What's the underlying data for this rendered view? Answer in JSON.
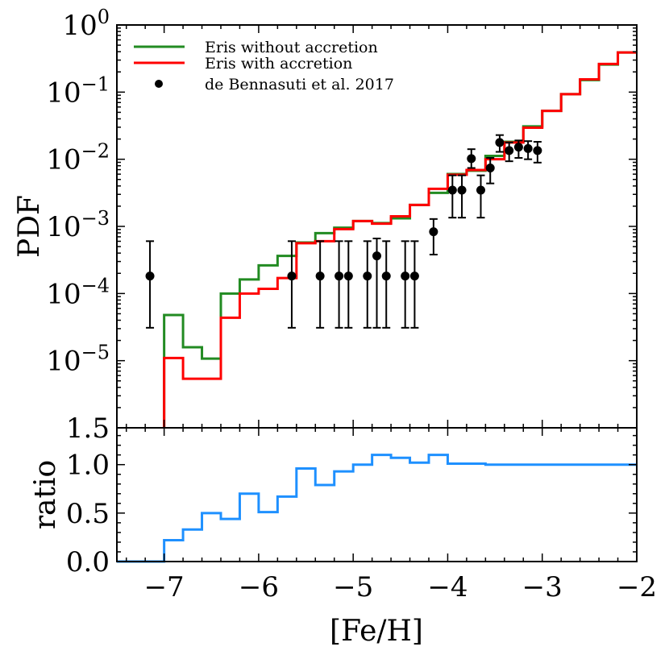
{
  "chart_data": [
    {
      "type": "line",
      "panel": "top",
      "title": "",
      "xlabel": "[Fe/H]",
      "ylabel": "PDF",
      "xlim": [
        -7.5,
        -2.0
      ],
      "ylog": true,
      "ylim_log10": [
        -6.0,
        0.0
      ],
      "ytick_labels": [
        {
          "exp": "0",
          "value": 0
        },
        {
          "exp": "−1",
          "value": -1
        },
        {
          "exp": "−2",
          "value": -2
        },
        {
          "exp": "−3",
          "value": -3
        },
        {
          "exp": "−4",
          "value": -4
        },
        {
          "exp": "−5",
          "value": -5
        }
      ],
      "ytick_base": "10",
      "bottom_tick_label": "1.5",
      "legend": {
        "position": "top-left",
        "entries": [
          {
            "label": "Eris without accretion",
            "color": "#228B22",
            "kind": "line"
          },
          {
            "label": "Eris with accretion",
            "color": "#ff0000",
            "kind": "line"
          },
          {
            "label": "de Bennasuti et al. 2017",
            "color": "#000000",
            "kind": "marker"
          }
        ]
      },
      "series": [
        {
          "name": "Eris without accretion",
          "color": "#228B22",
          "kind": "step",
          "edges": [
            -7.0,
            -6.8,
            -6.6,
            -6.4,
            -6.2,
            -6.0,
            -5.8,
            -5.6,
            -5.4,
            -5.2,
            -5.0,
            -4.8,
            -4.6,
            -4.4,
            -4.2,
            -4.0,
            -3.8,
            -3.6,
            -3.4,
            -3.2,
            -3.0,
            -2.8,
            -2.6,
            -2.4,
            -2.2,
            -2.0
          ],
          "log10_values": [
            -4.32,
            -4.8,
            -4.97,
            -4.0,
            -3.79,
            -3.58,
            -3.44,
            -3.24,
            -3.1,
            -3.02,
            -2.92,
            -2.95,
            -2.88,
            -2.68,
            -2.5,
            -2.22,
            -2.17,
            -1.95,
            -1.74,
            -1.51,
            -1.28,
            -1.03,
            -0.82,
            -0.59,
            -0.41
          ]
        },
        {
          "name": "Eris with accretion",
          "color": "#ff0000",
          "kind": "step",
          "edges": [
            -7.0,
            -6.8,
            -6.6,
            -6.4,
            -6.2,
            -6.0,
            -5.8,
            -5.6,
            -5.4,
            -5.2,
            -5.0,
            -4.8,
            -4.6,
            -4.4,
            -4.2,
            -4.0,
            -3.8,
            -3.6,
            -3.4,
            -3.2,
            -3.0,
            -2.8,
            -2.6,
            -2.4,
            -2.2,
            -2.0
          ],
          "log10_values": [
            -4.96,
            -5.27,
            -5.27,
            -4.36,
            -4.0,
            -3.93,
            -3.77,
            -3.25,
            -3.22,
            -3.04,
            -2.92,
            -2.96,
            -2.85,
            -2.68,
            -2.44,
            -2.23,
            -2.16,
            -2.0,
            -1.75,
            -1.53,
            -1.28,
            -1.03,
            -0.81,
            -0.58,
            -0.41
          ]
        },
        {
          "name": "de Bennasuti et al. 2017",
          "color": "#000000",
          "kind": "errorbar",
          "points": [
            {
              "x": -7.15,
              "log10_y": -3.74,
              "log10_lo": -4.51,
              "log10_hi": -3.22
            },
            {
              "x": -5.65,
              "log10_y": -3.74,
              "log10_lo": -4.51,
              "log10_hi": -3.22
            },
            {
              "x": -5.35,
              "log10_y": -3.74,
              "log10_lo": -4.51,
              "log10_hi": -3.22
            },
            {
              "x": -5.15,
              "log10_y": -3.74,
              "log10_lo": -4.51,
              "log10_hi": -3.22
            },
            {
              "x": -5.05,
              "log10_y": -3.74,
              "log10_lo": -4.51,
              "log10_hi": -3.22
            },
            {
              "x": -4.85,
              "log10_y": -3.74,
              "log10_lo": -4.51,
              "log10_hi": -3.22
            },
            {
              "x": -4.75,
              "log10_y": -3.44,
              "log10_lo": -4.51,
              "log10_hi": -3.18
            },
            {
              "x": -4.65,
              "log10_y": -3.74,
              "log10_lo": -4.51,
              "log10_hi": -3.22
            },
            {
              "x": -4.45,
              "log10_y": -3.74,
              "log10_lo": -4.51,
              "log10_hi": -3.22
            },
            {
              "x": -4.35,
              "log10_y": -3.74,
              "log10_lo": -4.51,
              "log10_hi": -3.22
            },
            {
              "x": -4.15,
              "log10_y": -3.08,
              "log10_lo": -3.42,
              "log10_hi": -2.89
            },
            {
              "x": -3.95,
              "log10_y": -2.46,
              "log10_lo": -2.87,
              "log10_hi": -2.24
            },
            {
              "x": -3.85,
              "log10_y": -2.46,
              "log10_lo": -2.87,
              "log10_hi": -2.24
            },
            {
              "x": -3.75,
              "log10_y": -1.99,
              "log10_lo": -2.13,
              "log10_hi": -1.85
            },
            {
              "x": -3.65,
              "log10_y": -2.46,
              "log10_lo": -2.87,
              "log10_hi": -2.24
            },
            {
              "x": -3.55,
              "log10_y": -2.13,
              "log10_lo": -2.36,
              "log10_hi": -1.98
            },
            {
              "x": -3.45,
              "log10_y": -1.75,
              "log10_lo": -1.89,
              "log10_hi": -1.64
            },
            {
              "x": -3.35,
              "log10_y": -1.87,
              "log10_lo": -2.03,
              "log10_hi": -1.75
            },
            {
              "x": -3.25,
              "log10_y": -1.82,
              "log10_lo": -1.98,
              "log10_hi": -1.72
            },
            {
              "x": -3.15,
              "log10_y": -1.84,
              "log10_lo": -2.0,
              "log10_hi": -1.73
            },
            {
              "x": -3.05,
              "log10_y": -1.87,
              "log10_lo": -2.05,
              "log10_hi": -1.74
            }
          ]
        }
      ]
    },
    {
      "type": "line",
      "panel": "bottom",
      "title": "",
      "xlabel": "[Fe/H]",
      "ylabel": "ratio",
      "xlim": [
        -7.5,
        -2.0
      ],
      "ylim": [
        0.0,
        1.38
      ],
      "xticks": [
        -7,
        -6,
        -5,
        -4,
        -3,
        -2
      ],
      "xtick_labels": [
        "−7",
        "−6",
        "−5",
        "−4",
        "−3",
        "−2"
      ],
      "yticks": [
        0.0,
        0.5,
        1.0
      ],
      "ytick_labels": [
        "0.0",
        "0.5",
        "1.0"
      ],
      "series": [
        {
          "name": "ratio",
          "color": "#1E90FF",
          "kind": "step",
          "edges": [
            -7.5,
            -7.0,
            -6.8,
            -6.6,
            -6.4,
            -6.2,
            -6.0,
            -5.8,
            -5.6,
            -5.4,
            -5.2,
            -5.0,
            -4.8,
            -4.6,
            -4.4,
            -4.2,
            -4.0,
            -3.8,
            -3.6,
            -3.4,
            -3.2,
            -3.0,
            -2.8,
            -2.6,
            -2.4,
            -2.2,
            -2.0
          ],
          "values": [
            0.0,
            0.22,
            0.33,
            0.5,
            0.44,
            0.7,
            0.51,
            0.67,
            0.96,
            0.79,
            0.93,
            1.0,
            1.1,
            1.07,
            1.02,
            1.1,
            1.01,
            1.01,
            1.0,
            1.0,
            1.0,
            1.0,
            1.0,
            1.0,
            1.0,
            1.0
          ]
        }
      ]
    }
  ]
}
